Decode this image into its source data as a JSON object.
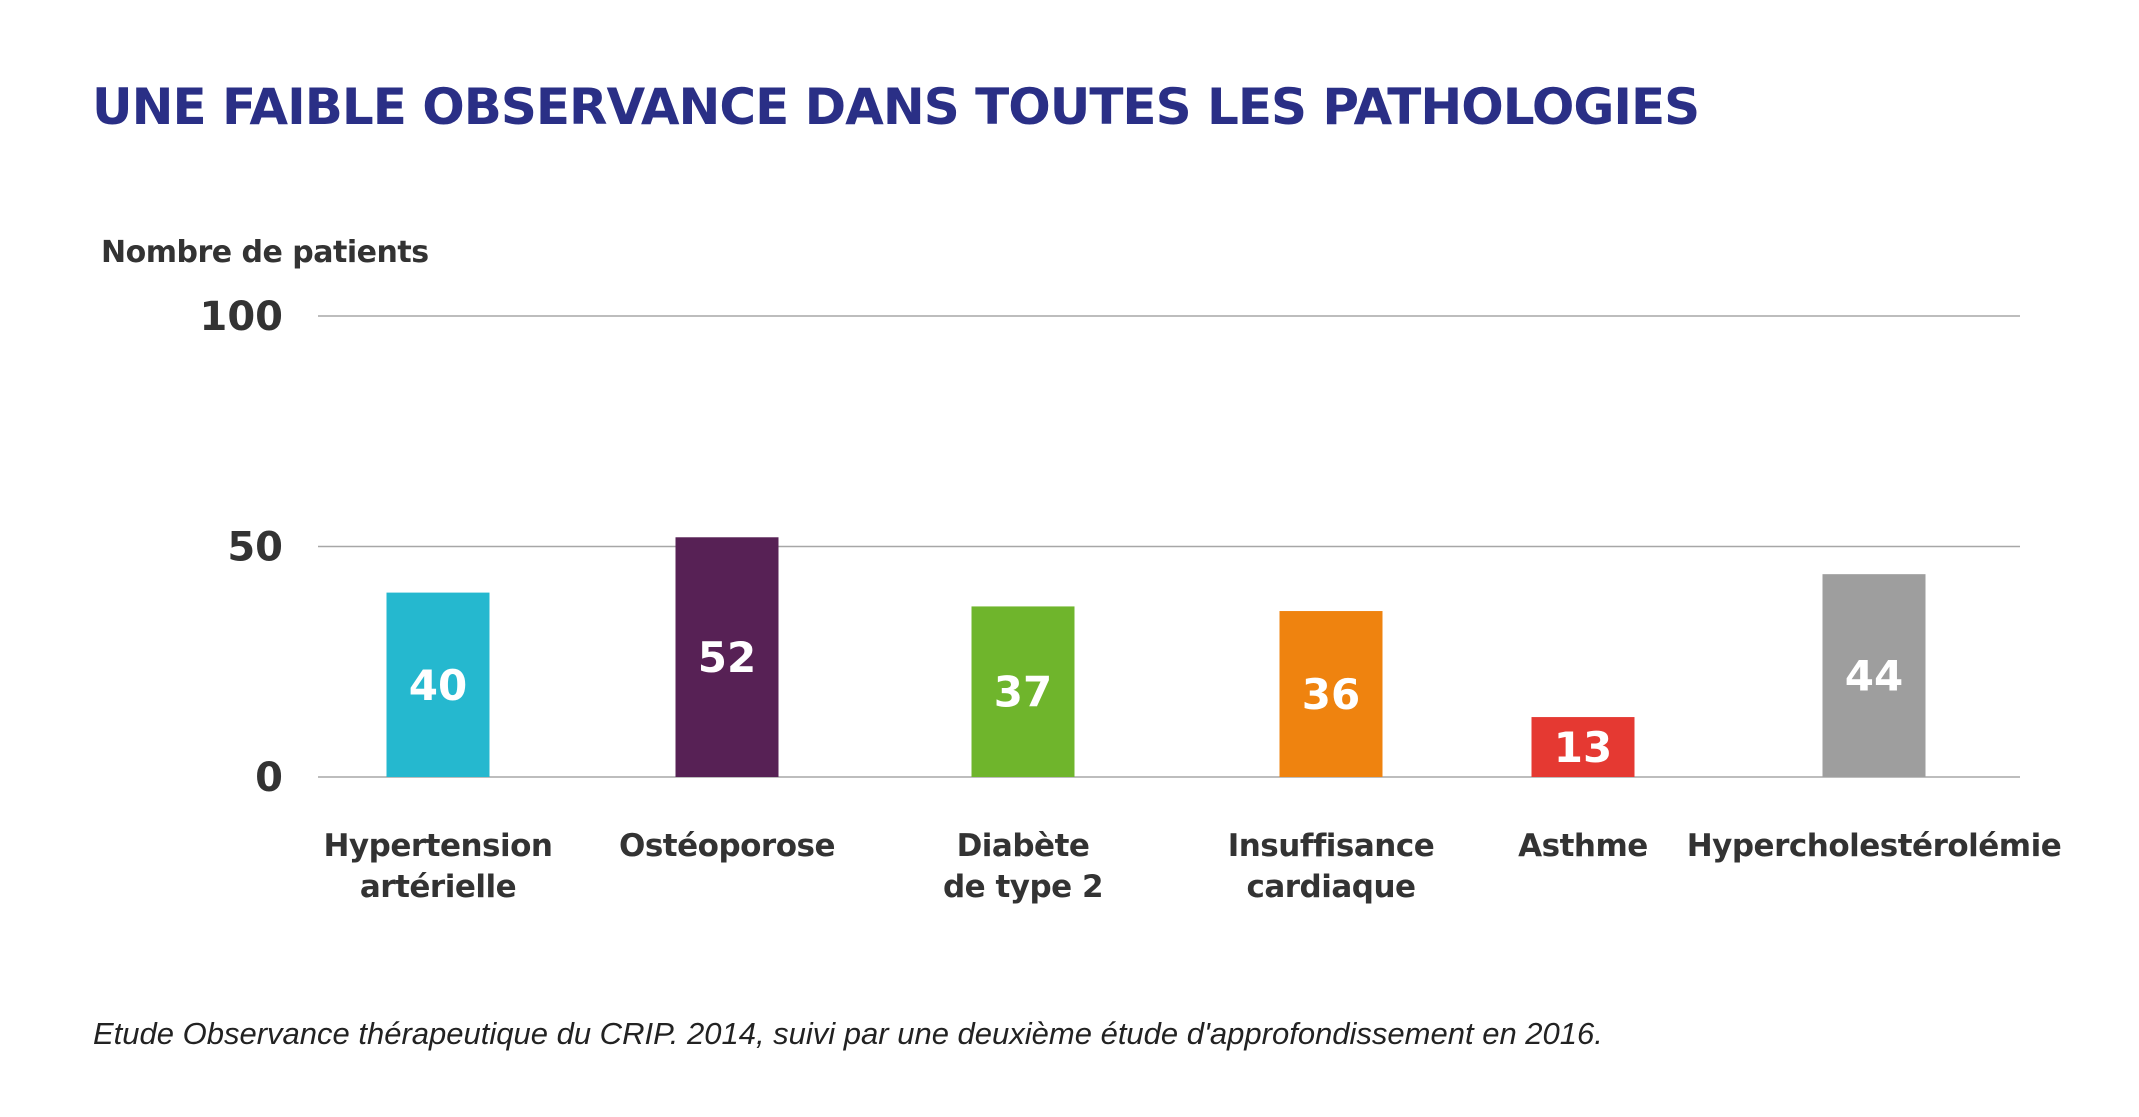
{
  "chart_data": {
    "type": "bar",
    "title": "UNE FAIBLE OBSERVANCE DANS TOUTES LES PATHOLOGIES",
    "ylabel": "Nombre de patients",
    "xlabel": "",
    "ylim": [
      0,
      100
    ],
    "yticks": [
      0,
      50,
      100
    ],
    "grid": true,
    "categories": [
      [
        "Hypertension",
        "artérielle"
      ],
      [
        "Ostéoporose"
      ],
      [
        "Diabète",
        "de type 2"
      ],
      [
        "Insuffisance",
        "cardiaque"
      ],
      [
        "Asthme"
      ],
      [
        "Hypercholestérolémie"
      ]
    ],
    "values": [
      40,
      52,
      37,
      36,
      13,
      44
    ],
    "colors": [
      "#25b8cf",
      "#572155",
      "#6fb52c",
      "#ef830f",
      "#e53932",
      "#9e9e9e"
    ]
  },
  "caption": "Etude Observance thérapeutique du CRIP. 2014, suivi par une deuxième étude d'approfondissement en 2016."
}
